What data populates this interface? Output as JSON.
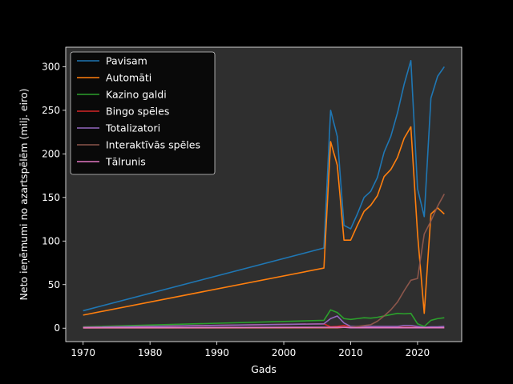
{
  "chart_data": {
    "type": "line",
    "xlabel": "Gads",
    "ylabel": "Neto ieņēmumi no azartspēlēm (milj. eiro)",
    "xlim": [
      1967.4,
      2026.6
    ],
    "ylim": [
      -15.4,
      322.4
    ],
    "xticks": [
      1970,
      1980,
      1990,
      2000,
      2010,
      2020
    ],
    "yticks": [
      0,
      50,
      100,
      150,
      200,
      250,
      300
    ],
    "grid": false,
    "legend_position": "top-left",
    "background": "#2f2f2f",
    "series": [
      {
        "name": "Pavisam",
        "color": "#1f77b4",
        "x": [
          1970,
          2006,
          2007,
          2008,
          2009,
          2010,
          2011,
          2012,
          2013,
          2014,
          2015,
          2016,
          2017,
          2018,
          2019,
          2020,
          2021,
          2022,
          2023,
          2024
        ],
        "y": [
          20,
          92,
          250,
          220,
          118,
          114,
          131,
          150,
          157,
          173,
          202,
          220,
          247,
          280,
          307,
          160,
          128,
          264,
          289,
          300
        ]
      },
      {
        "name": "Automāti",
        "color": "#ff7f0e",
        "x": [
          1970,
          2006,
          2007,
          2008,
          2009,
          2010,
          2011,
          2012,
          2013,
          2014,
          2015,
          2016,
          2017,
          2018,
          2019,
          2020,
          2021,
          2022,
          2023,
          2024
        ],
        "y": [
          15,
          69,
          214,
          187,
          101,
          101,
          118,
          134,
          141,
          152,
          174,
          182,
          196,
          218,
          231,
          108,
          17,
          131,
          138,
          131
        ]
      },
      {
        "name": "Kazino galdi",
        "color": "#2ca02c",
        "x": [
          1970,
          2006,
          2007,
          2008,
          2009,
          2010,
          2011,
          2012,
          2013,
          2014,
          2015,
          2016,
          2017,
          2018,
          2019,
          2020,
          2021,
          2022,
          2023,
          2024
        ],
        "y": [
          1.5,
          9,
          21,
          18,
          11,
          10,
          11,
          12,
          11.5,
          12.5,
          14,
          15.5,
          17,
          16.5,
          17,
          5,
          2,
          9,
          11,
          12
        ]
      },
      {
        "name": "Bingo spēles",
        "color": "#d62728",
        "x": [
          1970,
          2006,
          2007,
          2008,
          2009,
          2010,
          2011,
          2012,
          2013,
          2014,
          2015,
          2016,
          2017,
          2018,
          2019,
          2020,
          2021,
          2022,
          2023,
          2024
        ],
        "y": [
          1,
          5,
          1.5,
          2,
          3,
          1.5,
          1,
          1,
          1,
          1,
          1,
          1,
          1,
          1,
          1,
          1,
          0.5,
          0.5,
          0.5,
          0.5
        ]
      },
      {
        "name": "Totalizatori",
        "color": "#9467bd",
        "x": [
          1970,
          2006,
          2007,
          2008,
          2009,
          2010,
          2011,
          2012,
          2013,
          2014,
          2015,
          2016,
          2017,
          2018,
          2019,
          2020,
          2021,
          2022,
          2023,
          2024
        ],
        "y": [
          1,
          5,
          11,
          14,
          6,
          2,
          2,
          2,
          2,
          2,
          2,
          2,
          2,
          3,
          3,
          2,
          1,
          1.5,
          1.5,
          2
        ]
      },
      {
        "name": "Interaktīvās spēles",
        "color": "#8c564b",
        "x": [
          1970,
          2006,
          2007,
          2008,
          2009,
          2010,
          2011,
          2012,
          2013,
          2014,
          2015,
          2016,
          2017,
          2018,
          2019,
          2020,
          2021,
          2022,
          2023,
          2024
        ],
        "y": [
          0,
          0,
          0,
          0,
          1,
          1,
          2,
          3,
          4,
          8,
          14,
          21,
          30,
          43,
          55,
          57,
          108,
          123,
          140,
          154
        ]
      },
      {
        "name": "Tālrunis",
        "color": "#e377c2",
        "x": [
          1970,
          2006,
          2007,
          2008,
          2009,
          2010,
          2011,
          2012,
          2013,
          2014,
          2015,
          2016,
          2017,
          2018,
          2019,
          2020,
          2021,
          2022,
          2023,
          2024
        ],
        "y": [
          0.5,
          1,
          1,
          1,
          1,
          0.5,
          0.5,
          0.5,
          0.5,
          0.5,
          0.5,
          0.5,
          0.5,
          0.5,
          0.5,
          0.5,
          0.5,
          0.5,
          0.5,
          0.5
        ]
      }
    ]
  }
}
